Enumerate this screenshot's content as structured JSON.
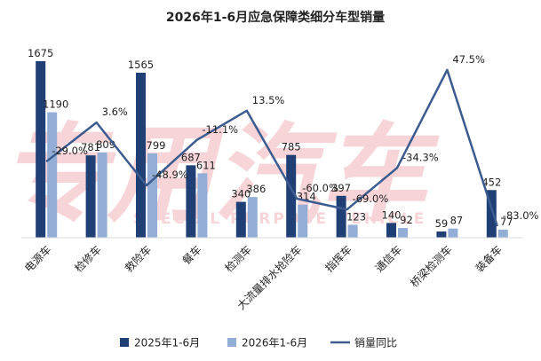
{
  "watermark": {
    "main": "专用汽车",
    "sub": "SPECIAL PURPOSE VEHICLE",
    "color": "#f3c6cc"
  },
  "colors": {
    "series_2025": "#203f75",
    "series_2026": "#93aed6",
    "line": "#3c5b8f",
    "axis": "#d9d9d9"
  },
  "chart_data": {
    "type": "bar",
    "title": "2026年1-6月应急保障类细分车型销量",
    "xlabel": "",
    "ylabel": "",
    "categories": [
      "电源车",
      "检修车",
      "救险车",
      "餐车",
      "检测车",
      "大流量排水抢险车",
      "指挥车",
      "通信车",
      "桥梁检测车",
      "装备车"
    ],
    "series": [
      {
        "name": "2025年1-6月",
        "type": "bar",
        "values": [
          1675,
          781,
          1565,
          687,
          340,
          785,
          397,
          140,
          59,
          452
        ]
      },
      {
        "name": "2026年1-6月",
        "type": "bar",
        "values": [
          1190,
          809,
          799,
          611,
          386,
          314,
          123,
          92,
          87,
          77
        ]
      },
      {
        "name": "销量同比",
        "type": "line",
        "values": [
          -29.0,
          3.6,
          -48.9,
          -11.1,
          13.5,
          -60.0,
          -69.0,
          -34.3,
          47.5,
          -83.0
        ],
        "labels": [
          "-29.0%",
          "3.6%",
          "-48.9%",
          "-11.1%",
          "13.5%",
          "-60.0%",
          "-69.0%",
          "-34.3%",
          "47.5%",
          "-83.0%"
        ]
      }
    ],
    "ylim": [
      0,
      1750
    ],
    "ylim_secondary": [
      -100,
      60
    ],
    "grid": false,
    "legend_position": "bottom"
  }
}
